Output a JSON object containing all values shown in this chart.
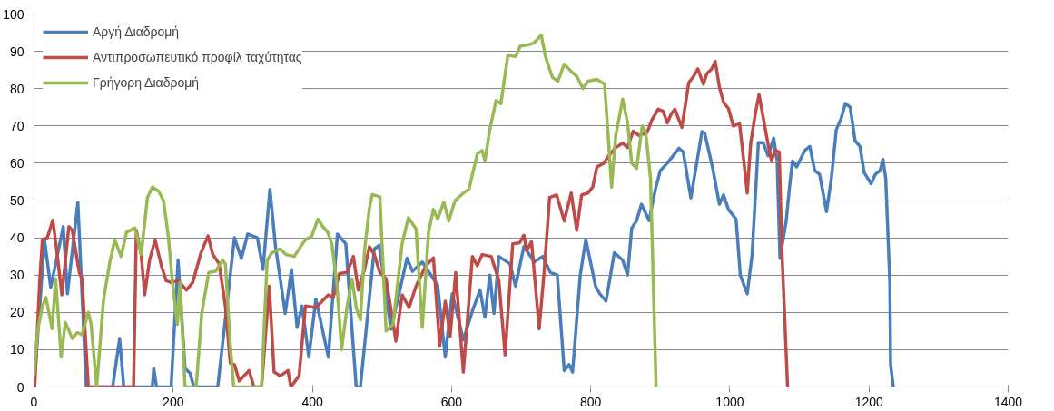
{
  "chart_data": {
    "type": "line",
    "xlim": [
      0,
      1400
    ],
    "xticks": [
      0,
      200,
      400,
      600,
      800,
      1000,
      1200,
      1400
    ],
    "ylim": [
      0,
      100
    ],
    "yticks": [
      0,
      10,
      20,
      30,
      40,
      50,
      60,
      70,
      80,
      90,
      100
    ],
    "grid": "y",
    "legend": "top left",
    "line_style": "solid",
    "marker": "none",
    "series": [
      {
        "name": "Αργή Διαδρομή",
        "color": "#4a7ebb",
        "x": [
          0,
          15,
          24,
          42,
          48,
          63,
          75,
          113,
          123,
          129,
          170,
          172,
          176,
          197,
          207,
          217,
          224,
          230,
          264,
          288,
          298,
          307,
          321,
          329,
          339,
          347,
          361,
          370,
          378,
          385,
          395,
          405,
          423,
          436,
          448,
          463,
          469,
          489,
          496,
          513,
          536,
          544,
          558,
          580,
          591,
          601,
          617,
          630,
          641,
          648,
          655,
          661,
          668,
          684,
          692,
          704,
          719,
          731,
          742,
          752,
          762,
          769,
          774,
          785,
          793,
          807,
          813,
          822,
          834,
          846,
          853,
          859,
          866,
          873,
          884,
          893,
          900,
          910,
          927,
          933,
          944,
          960,
          964,
          975,
          985,
          991,
          998,
          1009,
          1015,
          1025,
          1032,
          1041,
          1048,
          1055,
          1063,
          1068,
          1072,
          1081,
          1086,
          1090,
          1096,
          1108,
          1115,
          1122,
          1129,
          1139,
          1146,
          1153,
          1160,
          1166,
          1173,
          1180,
          1187,
          1193,
          1203,
          1209,
          1216,
          1220,
          1224,
          1230,
          1231,
          1235
        ],
        "values": [
          0,
          39.5,
          26.7,
          43,
          25,
          49.5,
          0,
          0,
          13,
          0,
          0,
          5,
          0,
          0,
          34,
          5,
          3.7,
          0,
          0,
          40,
          34.5,
          41,
          40,
          31.5,
          53,
          37.7,
          19.7,
          31.5,
          16,
          21.7,
          8,
          23.6,
          8,
          41,
          38.4,
          0,
          0,
          37,
          38,
          15.5,
          34.5,
          31,
          33.5,
          27.3,
          8,
          25,
          12.6,
          20.4,
          26,
          18.7,
          30,
          19.7,
          35,
          33,
          27,
          37.7,
          33.5,
          35,
          30.7,
          30,
          4.4,
          6,
          4,
          30,
          39.6,
          27,
          25,
          23,
          36,
          34,
          30,
          42.6,
          44.6,
          49,
          44.6,
          53,
          58,
          60,
          64,
          63,
          50.7,
          68.5,
          68,
          59,
          49,
          51.5,
          47.6,
          45,
          30,
          25,
          35.5,
          65.5,
          65.5,
          62,
          66.7,
          60.6,
          34.5,
          44.5,
          54,
          60.6,
          59,
          63.5,
          64.5,
          58,
          57,
          47,
          56,
          69,
          72,
          76,
          75,
          66,
          64.5,
          57.5,
          54.5,
          57,
          58,
          61,
          56,
          28,
          6,
          0
        ]
      },
      {
        "name": "Αντιπροσωπευτικό προφίλ ταχύτητας",
        "color": "#be4b48",
        "x": [
          1,
          8,
          12,
          19,
          27,
          32,
          40,
          50,
          55,
          65,
          69,
          78,
          143,
          147,
          154,
          159,
          166,
          174,
          183,
          190,
          197,
          207,
          219,
          228,
          240,
          250,
          257,
          266,
          275,
          282,
          288,
          295,
          309,
          316,
          327,
          338,
          345,
          354,
          365,
          369,
          381,
          390,
          405,
          423,
          430,
          439,
          450,
          459,
          466,
          475,
          482,
          489,
          497,
          506,
          520,
          529,
          539,
          549,
          563,
          574,
          583,
          591,
          598,
          606,
          617,
          630,
          637,
          644,
          657,
          668,
          677,
          688,
          698,
          704,
          708,
          715,
          726,
          733,
          741,
          751,
          762,
          772,
          780,
          787,
          796,
          803,
          809,
          819,
          826,
          836,
          846,
          853,
          861,
          870,
          881,
          888,
          897,
          904,
          910,
          916,
          921,
          931,
          941,
          948,
          954,
          962,
          967,
          974,
          979,
          985,
          991,
          998,
          1005,
          1014,
          1021,
          1025,
          1030,
          1037,
          1042,
          1055,
          1060,
          1065,
          1071,
          1075,
          1083
        ],
        "values": [
          0,
          28,
          39.5,
          40,
          44.7,
          37.6,
          24.7,
          43,
          42,
          30.7,
          29,
          0,
          0,
          42,
          35.5,
          24.7,
          34,
          39.5,
          32.5,
          28.5,
          28,
          28.5,
          26,
          28,
          36,
          40.5,
          35.5,
          33,
          21.7,
          6.4,
          6,
          1.6,
          4.4,
          0,
          0,
          27,
          4,
          3,
          4.4,
          0,
          3,
          21.7,
          21.3,
          24.7,
          24,
          30.4,
          30.7,
          35,
          26,
          31.5,
          37.6,
          35.5,
          30.7,
          29,
          12.3,
          24.7,
          21.3,
          27,
          32.5,
          34.6,
          11,
          23,
          13.6,
          30.7,
          4,
          35,
          32.5,
          35.5,
          35,
          28.6,
          8.6,
          38.4,
          38.7,
          40.7,
          36.6,
          39,
          15.6,
          30.7,
          50.8,
          51.5,
          44.5,
          52,
          42,
          51.5,
          52,
          53.6,
          59,
          60,
          62,
          64.2,
          65.4,
          64.2,
          68.6,
          67.4,
          68.2,
          71.6,
          74.5,
          74,
          70.8,
          73.3,
          74.5,
          69.6,
          81.6,
          83.3,
          85.3,
          81.2,
          84,
          85.3,
          87.3,
          80.4,
          76.3,
          74.7,
          70,
          70.6,
          59,
          52,
          65.4,
          73.7,
          78.4,
          65,
          60.6,
          63.5,
          63,
          35.7,
          0
        ]
      },
      {
        "name": "Γρήγορη Διαδρομή",
        "color": "#98b954",
        "x": [
          0,
          5,
          12,
          17,
          26,
          31,
          39,
          45,
          55,
          62,
          69,
          78,
          82,
          90,
          100,
          109,
          116,
          125,
          133,
          145,
          154,
          163,
          170,
          179,
          186,
          193,
          199,
          206,
          210,
          217,
          233,
          241,
          251,
          261,
          271,
          275,
          282,
          287,
          327,
          335,
          342,
          354,
          362,
          374,
          383,
          390,
          399,
          408,
          415,
          422,
          428,
          435,
          442,
          450,
          457,
          463,
          469,
          475,
          482,
          486,
          497,
          506,
          516,
          529,
          538,
          549,
          558,
          567,
          574,
          580,
          589,
          596,
          605,
          617,
          625,
          637,
          644,
          648,
          655,
          664,
          671,
          681,
          692,
          699,
          711,
          718,
          729,
          735,
          745,
          753,
          762,
          772,
          780,
          789,
          796,
          809,
          820,
          826,
          830,
          836,
          846,
          853,
          859,
          866,
          874,
          879,
          886,
          890,
          894
        ],
        "values": [
          3,
          15,
          21.7,
          24,
          15.6,
          29,
          8,
          17.3,
          13,
          14.6,
          14,
          20,
          16.8,
          0,
          23.6,
          33.5,
          39.5,
          35,
          41.5,
          42.6,
          35.5,
          50.8,
          53.6,
          52.5,
          50,
          40.4,
          28,
          16.8,
          28,
          0,
          0,
          19.7,
          30.7,
          31,
          34,
          33,
          11.4,
          0,
          0,
          34,
          36,
          37,
          35.5,
          35,
          37.6,
          39.5,
          40.4,
          45,
          43,
          41.5,
          38.4,
          28,
          10,
          21.7,
          29,
          21.3,
          18,
          36.6,
          48,
          51.6,
          51,
          15,
          16.8,
          38.4,
          45.4,
          42.4,
          16,
          41.5,
          47.6,
          45,
          49.6,
          44.5,
          50,
          52,
          53,
          62.5,
          63.4,
          60.6,
          69,
          76.8,
          76,
          89,
          88.6,
          91.4,
          91.8,
          92.2,
          94.3,
          88.6,
          83,
          82,
          86.6,
          84.6,
          83.3,
          80,
          82,
          82.5,
          81.2,
          65,
          53.6,
          67.4,
          77.2,
          70.8,
          60,
          58.6,
          70,
          68.4,
          56,
          28,
          0
        ]
      }
    ]
  }
}
